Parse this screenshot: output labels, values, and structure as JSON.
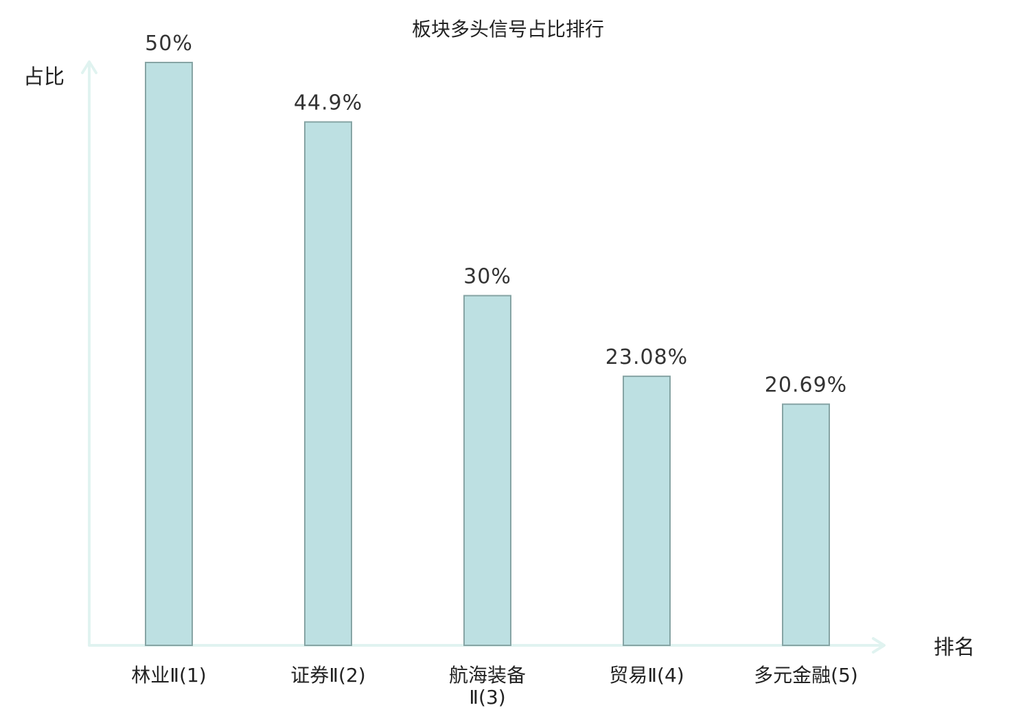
{
  "chart_data": {
    "type": "bar",
    "title": "板块多头信号占比排行",
    "ylabel": "占比",
    "xlabel": "排名",
    "categories": [
      {
        "lines": [
          "林业Ⅱ(1)"
        ],
        "color": "#222222"
      },
      {
        "lines": [
          "证券Ⅱ(2)"
        ],
        "color": "#e01e1e"
      },
      {
        "lines": [
          "航海装备",
          "Ⅱ(3)"
        ],
        "color": "#222222"
      },
      {
        "lines": [
          "贸易Ⅱ(4)"
        ],
        "color": "#222222"
      },
      {
        "lines": [
          "多元金融(5)"
        ],
        "color": "#222222"
      }
    ],
    "values": [
      50,
      44.9,
      30,
      23.08,
      20.69
    ],
    "value_labels": [
      "50%",
      "44.9%",
      "30%",
      "23.08%",
      "20.69%"
    ],
    "ylim": [
      0,
      50
    ],
    "grid": false,
    "colors": {
      "bar_fill": "#bde0e2",
      "bar_stroke": "#86a4a4",
      "axis": "#e0f3f0",
      "highlight": "#e01e1e"
    }
  }
}
